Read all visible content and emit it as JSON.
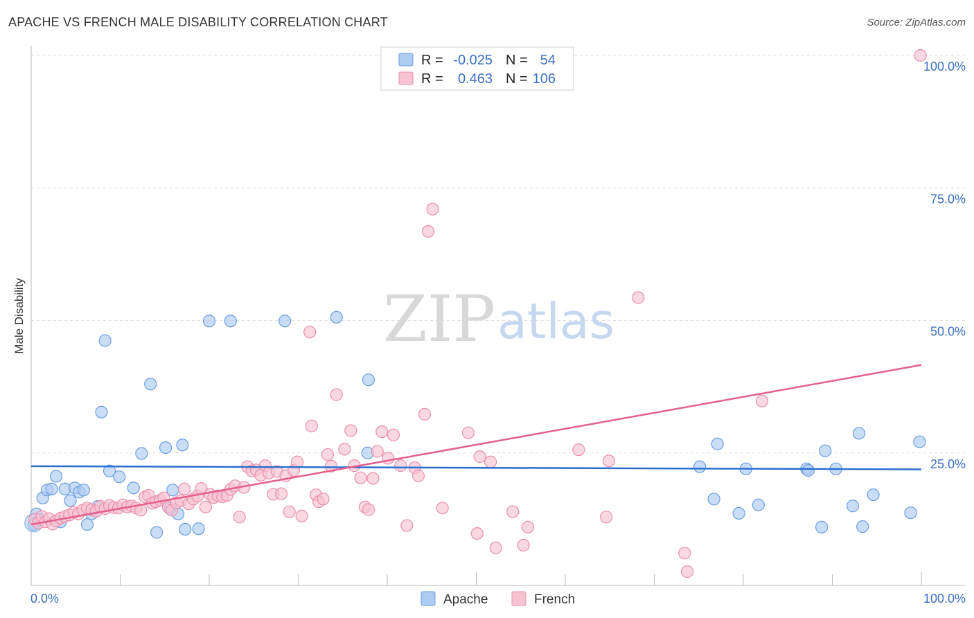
{
  "title": "APACHE VS FRENCH MALE DISABILITY CORRELATION CHART",
  "source": "Source: ZipAtlas.com",
  "watermark": {
    "left": "ZIP",
    "right": "atlas"
  },
  "legend": {
    "rows": [
      {
        "r_label": "R =",
        "r_value": "-0.025",
        "n_label": "N =",
        "n_value": "54"
      },
      {
        "r_label": "R =",
        "r_value": "0.463",
        "n_label": "N =",
        "n_value": "106"
      }
    ]
  },
  "bottom_legend": [
    "Apache",
    "French"
  ],
  "colors": {
    "apache_fill": "#aecbf2",
    "apache_stroke": "#6a9de0",
    "apache_line": "#2a6fce",
    "french_fill": "#f7c3d2",
    "french_stroke": "#ea8fac",
    "french_line": "#e45f8d",
    "tick_text": "#3a6fc4",
    "grid": "#dddddd"
  },
  "chart_data": {
    "type": "scatter",
    "xlabel": "",
    "ylabel": "Male Disability",
    "xlim": [
      0,
      100
    ],
    "ylim": [
      0,
      100
    ],
    "x_tick_labels": [
      "0.0%",
      "100.0%"
    ],
    "y_ticks": [
      25,
      50,
      75,
      100
    ],
    "y_tick_labels": [
      "25.0%",
      "50.0%",
      "75.0%",
      "100.0%"
    ],
    "grid": true,
    "legend_position": "top-center",
    "series": [
      {
        "name": "Apache",
        "r": -0.025,
        "n": 54,
        "trend": {
          "x": [
            0,
            100
          ],
          "y": [
            22.5,
            21.9
          ]
        },
        "points": [
          [
            0.3,
            11.5
          ],
          [
            0.6,
            13.5
          ],
          [
            1.3,
            16.5
          ],
          [
            1.8,
            18.0
          ],
          [
            2.3,
            18.2
          ],
          [
            2.8,
            20.6
          ],
          [
            3.3,
            12.0
          ],
          [
            3.8,
            18.2
          ],
          [
            4.4,
            16.0
          ],
          [
            4.9,
            18.4
          ],
          [
            5.4,
            17.6
          ],
          [
            5.9,
            18.0
          ],
          [
            6.3,
            11.5
          ],
          [
            6.8,
            13.5
          ],
          [
            7.5,
            14.9
          ],
          [
            7.9,
            32.7
          ],
          [
            8.3,
            46.2
          ],
          [
            8.8,
            21.6
          ],
          [
            9.9,
            20.5
          ],
          [
            11.5,
            18.4
          ],
          [
            12.4,
            24.9
          ],
          [
            13.4,
            38.0
          ],
          [
            14.1,
            10.0
          ],
          [
            15.1,
            26.0
          ],
          [
            15.6,
            14.5
          ],
          [
            15.9,
            18.0
          ],
          [
            16.5,
            13.5
          ],
          [
            17.0,
            26.5
          ],
          [
            17.3,
            10.6
          ],
          [
            18.8,
            10.7
          ],
          [
            20.0,
            49.9
          ],
          [
            22.4,
            49.9
          ],
          [
            28.5,
            49.9
          ],
          [
            34.3,
            50.6
          ],
          [
            37.8,
            25.0
          ],
          [
            37.9,
            38.8
          ],
          [
            75.1,
            22.4
          ],
          [
            76.7,
            16.3
          ],
          [
            77.1,
            26.7
          ],
          [
            79.5,
            13.6
          ],
          [
            80.3,
            22.0
          ],
          [
            81.7,
            15.2
          ],
          [
            87.1,
            22.0
          ],
          [
            87.3,
            21.7
          ],
          [
            88.8,
            11.0
          ],
          [
            89.2,
            25.4
          ],
          [
            90.4,
            22.0
          ],
          [
            92.3,
            15.0
          ],
          [
            93.0,
            28.7
          ],
          [
            93.4,
            11.1
          ],
          [
            94.6,
            17.1
          ],
          [
            98.8,
            13.7
          ],
          [
            99.8,
            27.1
          ],
          [
            0.9,
            12.4
          ]
        ]
      },
      {
        "name": "French",
        "r": 0.463,
        "n": 106,
        "trend": {
          "x": [
            0,
            100
          ],
          "y": [
            11.5,
            41.6
          ]
        },
        "points": [
          [
            0.4,
            12.5
          ],
          [
            0.8,
            11.8
          ],
          [
            1.2,
            13.0
          ],
          [
            1.6,
            12.0
          ],
          [
            2.0,
            12.6
          ],
          [
            2.4,
            11.6
          ],
          [
            2.8,
            12.2
          ],
          [
            3.3,
            12.7
          ],
          [
            3.8,
            13.0
          ],
          [
            4.3,
            13.3
          ],
          [
            4.8,
            13.8
          ],
          [
            5.3,
            13.5
          ],
          [
            5.8,
            14.2
          ],
          [
            6.3,
            14.6
          ],
          [
            6.8,
            14.3
          ],
          [
            7.3,
            14.0
          ],
          [
            7.8,
            14.9
          ],
          [
            8.3,
            14.5
          ],
          [
            8.8,
            15.1
          ],
          [
            9.3,
            14.7
          ],
          [
            9.8,
            14.6
          ],
          [
            10.3,
            15.2
          ],
          [
            10.8,
            14.8
          ],
          [
            11.3,
            15.0
          ],
          [
            11.8,
            14.6
          ],
          [
            12.3,
            14.2
          ],
          [
            12.8,
            16.7
          ],
          [
            13.2,
            17.0
          ],
          [
            13.6,
            15.5
          ],
          [
            14.0,
            15.8
          ],
          [
            14.5,
            16.1
          ],
          [
            14.9,
            16.5
          ],
          [
            15.4,
            14.8
          ],
          [
            15.8,
            14.2
          ],
          [
            16.3,
            15.6
          ],
          [
            16.8,
            16.0
          ],
          [
            17.2,
            18.2
          ],
          [
            17.7,
            15.4
          ],
          [
            18.2,
            16.3
          ],
          [
            18.7,
            16.9
          ],
          [
            19.1,
            18.3
          ],
          [
            19.6,
            14.8
          ],
          [
            20.1,
            17.2
          ],
          [
            20.5,
            16.6
          ],
          [
            21.0,
            16.9
          ],
          [
            21.5,
            16.7
          ],
          [
            22.0,
            17.0
          ],
          [
            22.4,
            18.1
          ],
          [
            22.9,
            18.8
          ],
          [
            23.4,
            12.9
          ],
          [
            23.9,
            18.5
          ],
          [
            24.3,
            22.4
          ],
          [
            24.8,
            21.6
          ],
          [
            25.3,
            21.8
          ],
          [
            25.8,
            20.8
          ],
          [
            26.3,
            22.6
          ],
          [
            26.7,
            21.2
          ],
          [
            27.2,
            17.2
          ],
          [
            27.6,
            21.5
          ],
          [
            28.1,
            17.3
          ],
          [
            28.6,
            20.7
          ],
          [
            29.0,
            13.9
          ],
          [
            29.5,
            21.7
          ],
          [
            29.9,
            23.3
          ],
          [
            30.4,
            13.1
          ],
          [
            31.3,
            47.8
          ],
          [
            31.5,
            30.1
          ],
          [
            32.0,
            17.1
          ],
          [
            32.3,
            15.8
          ],
          [
            32.8,
            16.3
          ],
          [
            33.3,
            24.7
          ],
          [
            33.7,
            22.5
          ],
          [
            34.3,
            36.0
          ],
          [
            35.2,
            25.7
          ],
          [
            35.9,
            29.2
          ],
          [
            36.3,
            22.6
          ],
          [
            37.0,
            20.3
          ],
          [
            37.5,
            14.8
          ],
          [
            37.9,
            14.3
          ],
          [
            38.4,
            20.2
          ],
          [
            38.9,
            25.3
          ],
          [
            39.4,
            29.0
          ],
          [
            40.1,
            24.0
          ],
          [
            40.7,
            28.4
          ],
          [
            41.5,
            22.6
          ],
          [
            42.2,
            11.3
          ],
          [
            43.1,
            22.2
          ],
          [
            43.5,
            20.7
          ],
          [
            44.2,
            32.3
          ],
          [
            44.6,
            66.8
          ],
          [
            45.1,
            71.0
          ],
          [
            46.2,
            14.6
          ],
          [
            49.1,
            28.8
          ],
          [
            50.1,
            9.8
          ],
          [
            50.4,
            24.3
          ],
          [
            51.6,
            23.3
          ],
          [
            52.2,
            7.1
          ],
          [
            54.1,
            13.9
          ],
          [
            55.3,
            7.6
          ],
          [
            55.8,
            11.0
          ],
          [
            61.5,
            25.6
          ],
          [
            64.6,
            12.9
          ],
          [
            64.9,
            23.5
          ],
          [
            68.2,
            54.3
          ],
          [
            73.4,
            6.1
          ],
          [
            73.7,
            2.6
          ],
          [
            82.1,
            34.8
          ],
          [
            99.9,
            100.0
          ]
        ]
      }
    ]
  }
}
